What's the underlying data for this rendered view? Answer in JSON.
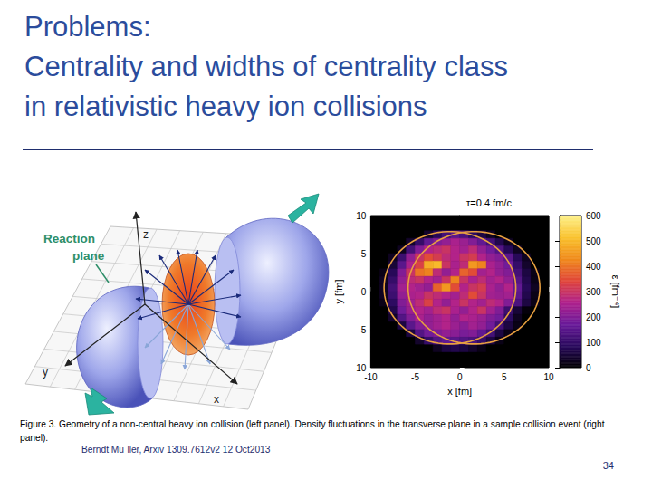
{
  "slide": {
    "title_lines": [
      "Problems:",
      "Centrality and widths of centrality class",
      "in relativistic heavy ion collisions"
    ],
    "caption": "Figure 3. Geometry of a non-central heavy ion collision (left panel). Density fluctuations in the transverse plane in a sample collision event (right panel).",
    "citation": "Berndt Mu¨ller, Arxiv 1309.7612v2 12 Oct2013",
    "page_number": 34,
    "left_figure": {
      "reaction_plane_label": [
        "Reaction",
        "plane"
      ],
      "axis_labels": {
        "z": "z",
        "y": "y",
        "x": "x"
      }
    }
  },
  "chart_data": {
    "type": "heatmap",
    "title": "τ=0.4 fm/c",
    "x_label": "x [fm]",
    "y_label": "y [fm]",
    "xlim": [
      -10,
      10
    ],
    "ylim": [
      -10,
      10
    ],
    "xticks": [
      -10,
      -5,
      0,
      5,
      10
    ],
    "yticks": [
      -10,
      -5,
      0,
      5,
      10
    ],
    "x": [
      -9.5,
      -8.5,
      -7.5,
      -6.5,
      -5.5,
      -4.5,
      -3.5,
      -2.5,
      -1.5,
      -0.5,
      0.5,
      1.5,
      2.5,
      3.5,
      4.5,
      5.5,
      6.5,
      7.5,
      8.5,
      9.5
    ],
    "y": [
      9.5,
      8.5,
      7.5,
      6.5,
      5.5,
      4.5,
      3.5,
      2.5,
      1.5,
      0.5,
      -0.5,
      -1.5,
      -2.5,
      -3.5,
      -4.5,
      -5.5,
      -6.5,
      -7.5,
      -8.5,
      -9.5
    ],
    "values": [
      [
        0,
        0,
        0,
        0,
        0,
        0,
        0,
        0,
        0,
        0,
        0,
        0,
        0,
        0,
        0,
        0,
        0,
        0,
        0,
        0
      ],
      [
        0,
        0,
        0,
        0,
        0,
        0,
        0,
        0,
        0,
        0,
        0,
        0,
        0,
        0,
        0,
        0,
        0,
        0,
        0,
        0
      ],
      [
        0,
        0,
        0,
        0,
        0,
        0,
        40,
        80,
        120,
        150,
        130,
        90,
        60,
        30,
        0,
        0,
        0,
        0,
        0,
        0
      ],
      [
        0,
        0,
        0,
        0,
        40,
        100,
        160,
        200,
        220,
        250,
        230,
        200,
        160,
        120,
        70,
        30,
        0,
        0,
        0,
        0
      ],
      [
        0,
        0,
        0,
        30,
        120,
        200,
        260,
        280,
        300,
        260,
        240,
        280,
        220,
        180,
        140,
        80,
        30,
        0,
        0,
        0
      ],
      [
        0,
        0,
        30,
        110,
        220,
        300,
        350,
        320,
        280,
        260,
        300,
        320,
        260,
        220,
        200,
        150,
        80,
        30,
        0,
        0
      ],
      [
        0,
        0,
        50,
        150,
        250,
        330,
        480,
        500,
        300,
        250,
        280,
        450,
        420,
        250,
        220,
        180,
        100,
        40,
        0,
        0
      ],
      [
        0,
        20,
        80,
        200,
        300,
        400,
        420,
        280,
        220,
        260,
        380,
        350,
        240,
        260,
        220,
        200,
        120,
        60,
        20,
        0
      ],
      [
        0,
        30,
        100,
        220,
        280,
        300,
        260,
        240,
        300,
        420,
        300,
        250,
        280,
        240,
        260,
        220,
        140,
        70,
        20,
        0
      ],
      [
        0,
        30,
        120,
        240,
        260,
        240,
        220,
        380,
        450,
        350,
        260,
        300,
        320,
        250,
        220,
        260,
        160,
        80,
        30,
        0
      ],
      [
        0,
        30,
        110,
        220,
        250,
        260,
        300,
        280,
        260,
        240,
        280,
        350,
        300,
        240,
        230,
        240,
        150,
        70,
        20,
        0
      ],
      [
        0,
        20,
        90,
        200,
        240,
        280,
        330,
        260,
        220,
        260,
        300,
        260,
        240,
        280,
        260,
        200,
        130,
        60,
        20,
        0
      ],
      [
        0,
        0,
        70,
        180,
        230,
        260,
        240,
        280,
        300,
        250,
        220,
        260,
        300,
        240,
        200,
        110,
        50,
        10,
        0,
        0
      ],
      [
        0,
        0,
        40,
        140,
        200,
        250,
        220,
        240,
        260,
        220,
        260,
        250,
        230,
        200,
        180,
        90,
        30,
        0,
        0,
        0
      ],
      [
        0,
        0,
        0,
        60,
        150,
        200,
        220,
        240,
        260,
        230,
        210,
        240,
        220,
        180,
        120,
        60,
        20,
        0,
        0,
        0
      ],
      [
        0,
        0,
        0,
        0,
        60,
        140,
        180,
        200,
        220,
        210,
        190,
        200,
        160,
        120,
        60,
        20,
        0,
        0,
        0,
        0
      ],
      [
        0,
        0,
        0,
        0,
        0,
        40,
        100,
        140,
        160,
        150,
        140,
        130,
        100,
        60,
        20,
        0,
        0,
        0,
        0,
        0
      ],
      [
        0,
        0,
        0,
        0,
        0,
        0,
        0,
        30,
        60,
        70,
        60,
        40,
        20,
        0,
        0,
        0,
        0,
        0,
        0,
        0
      ],
      [
        0,
        0,
        0,
        0,
        0,
        0,
        0,
        0,
        0,
        0,
        0,
        0,
        0,
        0,
        0,
        0,
        0,
        0,
        0,
        0
      ],
      [
        0,
        0,
        0,
        0,
        0,
        0,
        0,
        0,
        0,
        0,
        0,
        0,
        0,
        0,
        0,
        0,
        0,
        0,
        0,
        0
      ]
    ],
    "colorbar": {
      "label": "ε [fm⁻⁴]",
      "range": [
        0,
        600
      ],
      "ticks": [
        0,
        100,
        200,
        300,
        400,
        500,
        600
      ]
    },
    "nuclei": {
      "color": "#e8a040",
      "circles": [
        {
          "cx": -1.1,
          "cy": 0.5,
          "r": 7.4
        },
        {
          "cx": 1.6,
          "cy": 0.5,
          "r": 7.4
        }
      ]
    }
  }
}
